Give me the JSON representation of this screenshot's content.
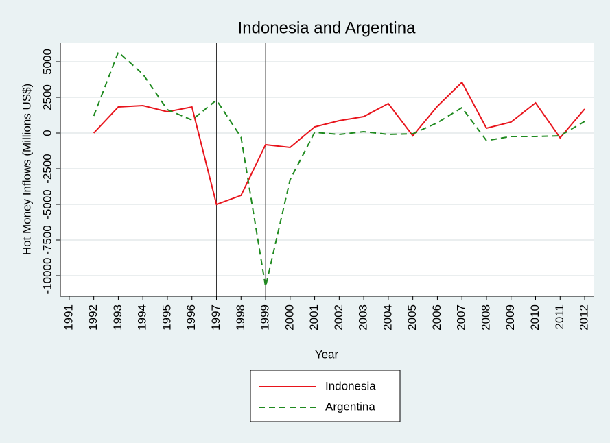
{
  "chart_data": {
    "type": "line",
    "title": "Indonesia and Argentina",
    "xlabel": "Year",
    "ylabel": "Hot Money Inflows (Millions US$)",
    "x": [
      1992,
      1993,
      1994,
      1995,
      1996,
      1997,
      1998,
      1999,
      2000,
      2001,
      2002,
      2003,
      2004,
      2005,
      2006,
      2007,
      2008,
      2009,
      2010,
      2011,
      2012
    ],
    "series": [
      {
        "name": "Indonesia",
        "color": "#e8141c",
        "dash": "none",
        "values": [
          0,
          1827,
          1923,
          1490,
          1827,
          -5000,
          -4375,
          -817,
          -1010,
          433,
          865,
          1154,
          2067,
          -192,
          1875,
          3558,
          337,
          769,
          2115,
          -337,
          1683
        ]
      },
      {
        "name": "Argentina",
        "color": "#1f8a1f",
        "dash": "9 6",
        "values": [
          1202,
          5673,
          4135,
          1635,
          913,
          2308,
          -288,
          -10769,
          -3269,
          48,
          -96,
          96,
          -96,
          -48,
          721,
          1779,
          -529,
          -240,
          -240,
          -192,
          817
        ]
      }
    ],
    "xlim": [
      1990.64,
      2012.39
    ],
    "xticks": [
      1991,
      1992,
      1993,
      1994,
      1995,
      1996,
      1997,
      1998,
      1999,
      2000,
      2001,
      2002,
      2003,
      2004,
      2005,
      2006,
      2007,
      2008,
      2009,
      2010,
      2011,
      2012
    ],
    "ylim": [
      -11442,
      6346
    ],
    "yticks": [
      -10000,
      -7500,
      -5000,
      -2500,
      0,
      2500,
      5000
    ],
    "xlines": [
      1997,
      1999
    ],
    "grid": true,
    "legend": "bottom"
  }
}
